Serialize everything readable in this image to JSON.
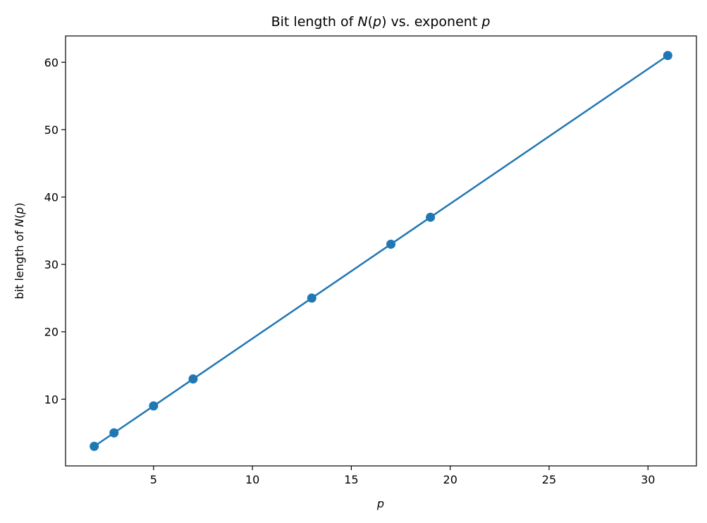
{
  "chart_data": {
    "type": "line",
    "title": "Bit length of N(p) vs. exponent p",
    "xlabel": "p",
    "ylabel": "bit length of N(p)",
    "x": [
      2,
      3,
      5,
      7,
      13,
      17,
      19,
      31
    ],
    "series": [
      {
        "values": [
          3,
          5,
          9,
          13,
          25,
          33,
          37,
          61
        ],
        "color": "#1f77b4",
        "marker": "circle"
      }
    ],
    "xlim": [
      0.55,
      32.45
    ],
    "ylim": [
      0.1,
      63.9
    ],
    "xticks": [
      5,
      10,
      15,
      20,
      25,
      30
    ],
    "yticks": [
      10,
      20,
      30,
      40,
      50,
      60
    ],
    "grid": false
  }
}
